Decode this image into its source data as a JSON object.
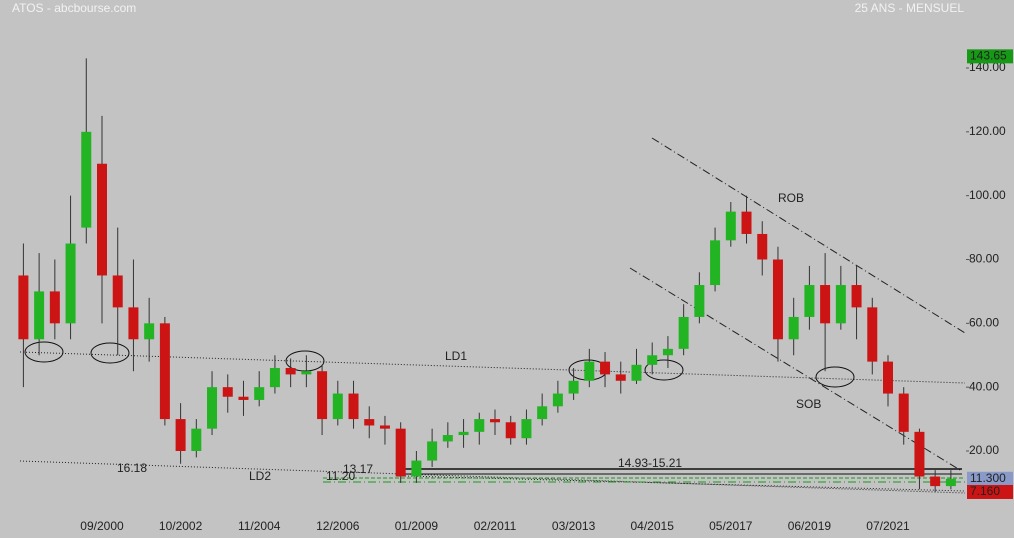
{
  "chart_data": {
    "type": "candlestick",
    "title": "ATOS - abcbourse.com",
    "subtitle": "25 ANS - MENSUEL",
    "categories": [
      null,
      null,
      null,
      null,
      null,
      "09/2000",
      null,
      null,
      null,
      null,
      "10/2002",
      null,
      null,
      null,
      null,
      "11/2004",
      null,
      null,
      null,
      null,
      "12/2006",
      null,
      null,
      null,
      null,
      "01/2009",
      null,
      null,
      null,
      null,
      "02/2011",
      null,
      null,
      null,
      null,
      "03/2013",
      null,
      null,
      null,
      null,
      "04/2015",
      null,
      null,
      null,
      null,
      "05/2017",
      null,
      null,
      null,
      null,
      "06/2019",
      null,
      null,
      null,
      null,
      "07/2021",
      null,
      null,
      null,
      null
    ],
    "open": [
      75,
      55,
      70,
      60,
      90,
      110,
      75,
      65,
      55,
      60,
      30,
      20,
      27,
      40,
      37,
      36,
      40,
      46,
      44,
      45,
      30,
      38,
      30,
      28,
      27,
      12,
      17,
      23,
      25,
      26,
      30,
      29,
      24,
      30,
      34,
      38,
      42,
      48,
      44,
      42,
      47,
      50,
      52,
      62,
      72,
      86,
      95,
      88,
      80,
      55,
      62,
      72,
      60,
      72,
      65,
      48,
      38,
      26,
      12,
      9
    ],
    "high": [
      85,
      82,
      80,
      100,
      143,
      125,
      90,
      80,
      68,
      62,
      35,
      30,
      45,
      44,
      42,
      45,
      50,
      49,
      50,
      47,
      42,
      42,
      34,
      31,
      29,
      20,
      27,
      29,
      30,
      32,
      33,
      31,
      33,
      38,
      42,
      46,
      52,
      51,
      48,
      52,
      54,
      56,
      66,
      76,
      90,
      98,
      100,
      92,
      84,
      68,
      78,
      82,
      78,
      78,
      68,
      50,
      40,
      27,
      14,
      14
    ],
    "low": [
      40,
      50,
      55,
      55,
      85,
      60,
      50,
      45,
      48,
      28,
      16,
      18,
      25,
      32,
      31,
      34,
      38,
      40,
      40,
      25,
      28,
      27,
      24,
      22,
      10,
      10,
      15,
      21,
      21,
      22,
      25,
      22,
      22,
      28,
      32,
      36,
      40,
      40,
      38,
      41,
      44,
      46,
      50,
      60,
      70,
      84,
      85,
      75,
      48,
      50,
      58,
      45,
      58,
      55,
      44,
      34,
      22,
      8,
      7,
      8
    ],
    "close": [
      55,
      70,
      60,
      85,
      120,
      75,
      65,
      55,
      60,
      30,
      20,
      27,
      40,
      37,
      36,
      40,
      46,
      44,
      45,
      30,
      38,
      30,
      28,
      27,
      12,
      17,
      23,
      25,
      26,
      30,
      29,
      24,
      30,
      34,
      38,
      42,
      48,
      44,
      42,
      47,
      50,
      52,
      62,
      72,
      86,
      95,
      88,
      80,
      55,
      62,
      72,
      60,
      72,
      65,
      48,
      38,
      26,
      12,
      9,
      11.3
    ],
    "up_color": "#22b422",
    "down_color": "#cc1414",
    "ylim": [
      0,
      160
    ],
    "yticks": [
      {
        "value": 20,
        "label": "20.00"
      },
      {
        "value": 40,
        "label": "40.00"
      },
      {
        "value": 60,
        "label": "60.00"
      },
      {
        "value": 80,
        "label": "80.00"
      },
      {
        "value": 100,
        "label": "100.00"
      },
      {
        "value": 120,
        "label": "120.00"
      },
      {
        "value": 140,
        "label": "140.00"
      }
    ],
    "price_tags": [
      {
        "value": 143.65,
        "color": "#169a16"
      },
      {
        "value": 11.3,
        "label": "11.300",
        "color": "#8a9ac8"
      },
      {
        "value": 7.16,
        "label": "7.160",
        "color": "#cc1414"
      }
    ],
    "annotations": [
      {
        "text": "ROB"
      },
      {
        "text": "SOB"
      },
      {
        "text": "LD1"
      },
      {
        "text": "LD2"
      },
      {
        "text": "16.18"
      },
      {
        "text": "13.17",
        "color": "#1a9a1a"
      },
      {
        "text": "11.20",
        "color": "#1a9a1a"
      },
      {
        "text": "14.93-15.21"
      }
    ]
  }
}
